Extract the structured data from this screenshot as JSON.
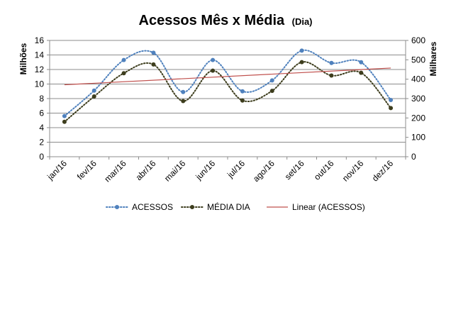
{
  "chart_data": {
    "type": "line",
    "title": "Acessos Mês x Média",
    "subtitle": "(Dia)",
    "categories": [
      "jan/16",
      "fev/16",
      "mar/16",
      "abr/16",
      "mai/16",
      "jun/16",
      "jul/16",
      "ago/16",
      "set/16",
      "out/16",
      "nov/16",
      "dez/16"
    ],
    "y_left": {
      "label": "Milhões",
      "min": 0,
      "max": 16,
      "ticks": [
        0,
        2,
        4,
        6,
        8,
        10,
        12,
        14,
        16
      ]
    },
    "y_right": {
      "label": "Milhares",
      "min": 0,
      "max": 600,
      "ticks": [
        0,
        100,
        200,
        300,
        400,
        500,
        600
      ]
    },
    "series": [
      {
        "name": "ACESSOS",
        "axis": "left",
        "style": "dotted",
        "color": "#4f81bd",
        "marker": "circle",
        "values": [
          5.6,
          9.1,
          13.3,
          14.3,
          8.9,
          13.3,
          9.0,
          10.5,
          14.6,
          12.9,
          13.0,
          7.8
        ]
      },
      {
        "name": "MÉDIA DIA",
        "axis": "right",
        "style": "dotted",
        "color": "#3d3d1d",
        "marker": "circle",
        "values": [
          180,
          311,
          431,
          476,
          287,
          444,
          290,
          340,
          488,
          419,
          433,
          251
        ]
      },
      {
        "name": "Linear (ACESSOS)",
        "axis": "left",
        "style": "solid",
        "color": "#c0504d",
        "marker": "none",
        "values": [
          9.9,
          10.1,
          10.3,
          10.5,
          10.7,
          10.9,
          11.1,
          11.3,
          11.5,
          11.7,
          11.9,
          12.2
        ]
      }
    ],
    "grid": true,
    "legend_position": "bottom"
  }
}
